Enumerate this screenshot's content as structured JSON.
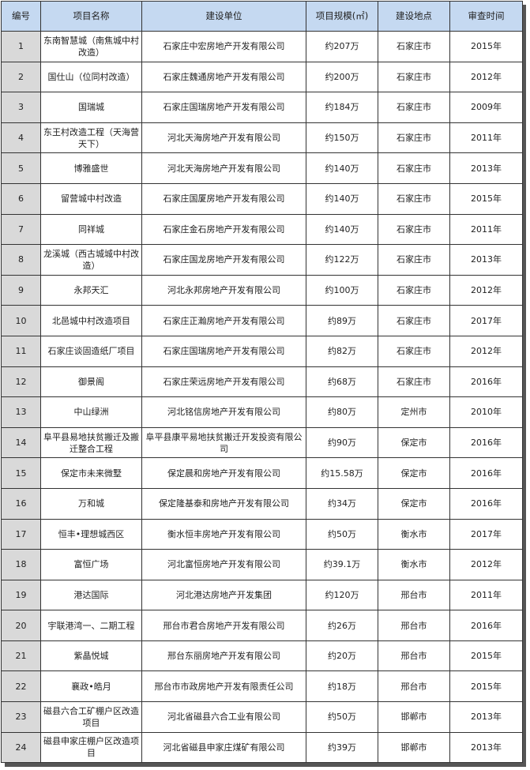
{
  "headers": [
    "编号",
    "项目名称",
    "建设单位",
    "项目规模(㎡)",
    "建设地点",
    "审查时间"
  ],
  "rows": [
    [
      "1",
      "东南智慧城（南焦城中村改造）",
      "石家庄中宏房地产开发有限公司",
      "约207万",
      "石家庄市",
      "2015年"
    ],
    [
      "2",
      "国仕山（位同村改造）",
      "石家庄魏通房地产开发有限公司",
      "约200万",
      "石家庄市",
      "2012年"
    ],
    [
      "3",
      "国瑞城",
      "石家庄国瑞房地产开发有限公司",
      "约184万",
      "石家庄市",
      "2009年"
    ],
    [
      "4",
      "东王村改造工程（天海营天下）",
      "河北天海房地产开发有限公司",
      "约150万",
      "石家庄市",
      "2011年"
    ],
    [
      "5",
      "博雅盛世",
      "河北天海房地产开发有限公司",
      "约140万",
      "石家庄市",
      "2013年"
    ],
    [
      "6",
      "留营城中村改造",
      "石家庄国厦房地产开发有限公司",
      "约140万",
      "石家庄市",
      "2015年"
    ],
    [
      "7",
      "同祥城",
      "石家庄金石房地产开发有限公司",
      "约140万",
      "石家庄市",
      "2011年"
    ],
    [
      "8",
      "龙溪城（西古城城中村改造）",
      "石家庄国龙房地产开发有限公司",
      "约122万",
      "石家庄市",
      "2013年"
    ],
    [
      "9",
      "永邦天汇",
      "河北永邦房地产开发有限公司",
      "约100万",
      "石家庄市",
      "2012年"
    ],
    [
      "10",
      "北邑城中村改造项目",
      "石家庄正瀚房地产开发有限公司",
      "约89万",
      "石家庄市",
      "2017年"
    ],
    [
      "11",
      "石家庄谈固造纸厂项目",
      "石家庄国瑞房地产开发有限公司",
      "约82万",
      "石家庄市",
      "2012年"
    ],
    [
      "12",
      "御景阁",
      "石家庄荣远房地产开发有限公司",
      "约68万",
      "石家庄市",
      "2016年"
    ],
    [
      "13",
      "中山绿洲",
      "河北铭信房地产开发有限公司",
      "约80万",
      "定州市",
      "2010年"
    ],
    [
      "14",
      "阜平县易地扶贫搬迁及搬迁整合工程",
      "阜平县康平易地扶贫搬迁开发投资有限公司",
      "约90万",
      "保定市",
      "2016年"
    ],
    [
      "15",
      "保定市未来微墅",
      "保定晨和房地产开发有限公司",
      "约15.58万",
      "保定市",
      "2016年"
    ],
    [
      "16",
      "万和城",
      "保定隆基泰和房地产开发有限公司",
      "约34万",
      "保定市",
      "2016年"
    ],
    [
      "17",
      "恒丰•理想城西区",
      "衡水恒丰房地产开发有限公司",
      "约50万",
      "衡水市",
      "2017年"
    ],
    [
      "18",
      "富恒广场",
      "河北富恒房地产开发有限公司",
      "约39.1万",
      "衡水市",
      "2012年"
    ],
    [
      "19",
      "港达国际",
      "河北港达房地产开发集团",
      "约120万",
      "邢台市",
      "2011年"
    ],
    [
      "20",
      "宇联港湾一、二期工程",
      "邢台市君合房地产开发有限公司",
      "约26万",
      "邢台市",
      "2016年"
    ],
    [
      "21",
      "紫晶悦城",
      "邢台东丽房地产开发有限公司",
      "约20万",
      "邢台市",
      "2015年"
    ],
    [
      "22",
      "襄政•皓月",
      "邢台市市政房地产开发有限责任公司",
      "约18万",
      "邢台市",
      "2015年"
    ],
    [
      "23",
      "磁县六合工矿棚户区改造项目",
      "河北省磁县六合工业有限公司",
      "约50万",
      "邯郸市",
      "2013年"
    ],
    [
      "24",
      "磁县申家庄棚户区改造项目",
      "河北省磁县申家庄煤矿有限公司",
      "约39万",
      "邯郸市",
      "2013年"
    ]
  ],
  "colors": {
    "header_bg": "#c5d9f1",
    "number_column_bg": "#d9d9d9",
    "border": "#333333"
  }
}
